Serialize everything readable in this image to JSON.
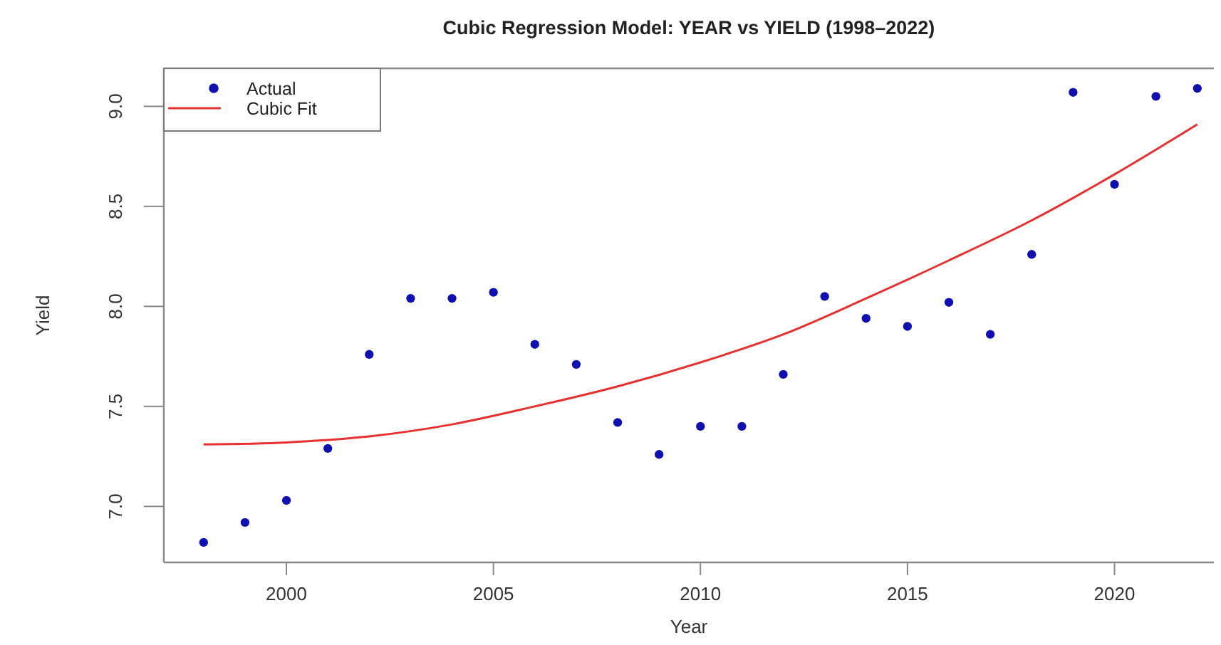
{
  "chart_data": {
    "type": "scatter",
    "title": "Cubic Regression Model: YEAR vs YIELD (1998–2022)",
    "xlabel": "Year",
    "ylabel": "Yield",
    "xlim": [
      1997.04,
      2022.4
    ],
    "xticks": [
      2000,
      2005,
      2010,
      2015,
      2020
    ],
    "ylim": [
      6.72,
      9.19
    ],
    "yticks": [
      {
        "value": 7,
        "label": "7.0"
      },
      {
        "value": 7.5,
        "label": "7.5"
      },
      {
        "value": 8,
        "label": "8.0"
      },
      {
        "value": 8.5,
        "label": "8.5"
      },
      {
        "value": 9,
        "label": "9.0"
      }
    ],
    "legend": "top left",
    "series": [
      {
        "name": "Actual",
        "marker": "circle",
        "color": "#1010b0",
        "x": [
          1998,
          1999,
          2000,
          2001,
          2002,
          2003,
          2004,
          2005,
          2006,
          2007,
          2008,
          2009,
          2010,
          2011,
          2012,
          2013,
          2014,
          2015,
          2016,
          2017,
          2018,
          2019,
          2020,
          2021,
          2022
        ],
        "values": [
          6.82,
          6.92,
          7.03,
          7.29,
          7.76,
          8.04,
          8.04,
          8.07,
          7.81,
          7.71,
          7.42,
          7.26,
          7.4,
          7.4,
          7.66,
          8.05,
          7.94,
          7.9,
          8.02,
          7.86,
          8.26,
          9.07,
          8.61,
          9.05,
          9.09
        ]
      },
      {
        "name": "Cubic Fit",
        "type": "line",
        "color": "#e83030",
        "x": [
          1998,
          2000,
          2002,
          2004,
          2006,
          2008,
          2010,
          2012,
          2014,
          2016,
          2018,
          2020,
          2022
        ],
        "values": [
          7.31,
          7.32,
          7.35,
          7.41,
          7.5,
          7.6,
          7.72,
          7.86,
          8.04,
          8.23,
          8.43,
          8.66,
          8.91
        ]
      }
    ]
  }
}
